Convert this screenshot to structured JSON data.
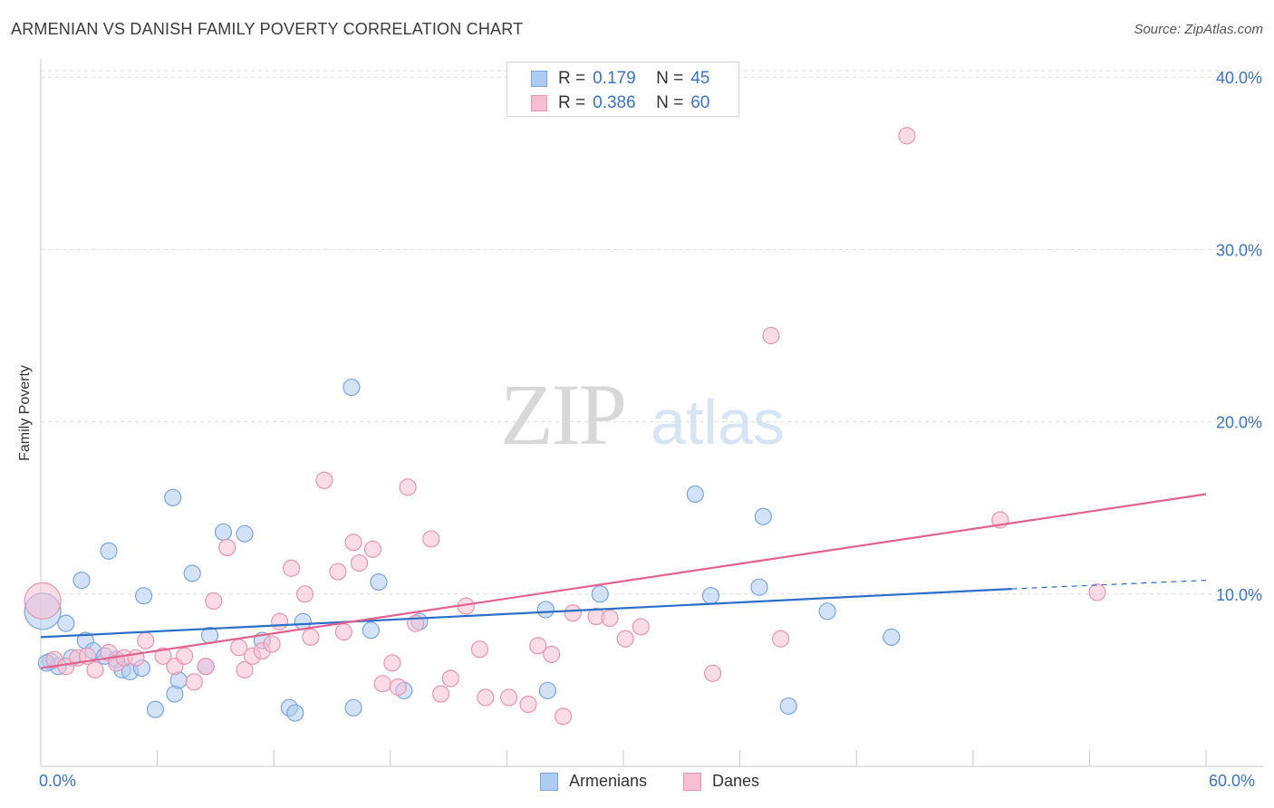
{
  "title": "ARMENIAN VS DANISH FAMILY POVERTY CORRELATION CHART",
  "source": "Source: ZipAtlas.com",
  "watermark": {
    "zip": "ZIP",
    "atlas": "atlas"
  },
  "legend": {
    "rows": [
      {
        "r_label": "R =",
        "r_value": "0.179",
        "n_label": "N =",
        "n_value": "45"
      },
      {
        "r_label": "R =",
        "r_value": "0.386",
        "n_label": "N =",
        "n_value": "60"
      }
    ]
  },
  "bottom_legend": {
    "armenians": "Armenians",
    "danes": "Danes"
  },
  "colors": {
    "armenians_fill": "#aecbf0",
    "armenians_stroke": "#7aa6dc",
    "armenians_line": "#2b6fc8",
    "danes_fill": "#f6c0d2",
    "danes_stroke": "#ea94b2",
    "danes_line": "#e2628f",
    "tick_text": "#3a74c4",
    "grid": "#dddddd"
  },
  "chart_data": {
    "type": "scatter",
    "title": "ARMENIAN VS DANISH FAMILY POVERTY CORRELATION CHART",
    "xlabel": "",
    "ylabel": "Family Poverty",
    "xlim": [
      0,
      60
    ],
    "ylim": [
      0,
      40.8
    ],
    "x_tick_labels": [
      "0.0%",
      "60.0%"
    ],
    "y_ticks": [
      10,
      20,
      30,
      40
    ],
    "y_tick_labels": [
      "10.0%",
      "20.0%",
      "30.0%",
      "40.0%"
    ],
    "grid": "horizontal dashed",
    "legend_position": "top-center",
    "series": [
      {
        "name": "Armenians",
        "R": 0.179,
        "N": 45,
        "trend": {
          "x0": 0,
          "y0": 7.5,
          "x1": 50,
          "y1": 10.3,
          "dashed_to_x": 60,
          "dashed_to_y": 10.8
        },
        "points": [
          [
            0.1,
            9.0
          ],
          [
            0.5,
            6.1
          ],
          [
            0.9,
            5.8
          ],
          [
            1.3,
            8.3
          ],
          [
            1.6,
            6.3
          ],
          [
            2.1,
            10.8
          ],
          [
            2.3,
            7.3
          ],
          [
            2.7,
            6.7
          ],
          [
            3.3,
            6.4
          ],
          [
            3.5,
            12.5
          ],
          [
            3.9,
            6.2
          ],
          [
            4.2,
            5.6
          ],
          [
            4.6,
            5.5
          ],
          [
            5.2,
            5.7
          ],
          [
            5.3,
            9.9
          ],
          [
            5.9,
            3.3
          ],
          [
            6.8,
            15.6
          ],
          [
            6.9,
            4.2
          ],
          [
            7.1,
            5.0
          ],
          [
            7.8,
            11.2
          ],
          [
            8.5,
            5.8
          ],
          [
            8.7,
            7.6
          ],
          [
            9.4,
            13.6
          ],
          [
            10.5,
            13.5
          ],
          [
            11.4,
            7.3
          ],
          [
            12.8,
            3.4
          ],
          [
            13.1,
            3.1
          ],
          [
            13.5,
            8.4
          ],
          [
            16.0,
            22.0
          ],
          [
            16.1,
            3.4
          ],
          [
            17.0,
            7.9
          ],
          [
            17.4,
            10.7
          ],
          [
            18.7,
            4.4
          ],
          [
            19.5,
            8.4
          ],
          [
            26.0,
            9.1
          ],
          [
            26.1,
            4.4
          ],
          [
            28.8,
            10.0
          ],
          [
            33.7,
            15.8
          ],
          [
            34.5,
            9.9
          ],
          [
            37.0,
            10.4
          ],
          [
            37.2,
            14.5
          ],
          [
            38.5,
            3.5
          ],
          [
            40.5,
            9.0
          ],
          [
            43.8,
            7.5
          ],
          [
            0.3,
            6.0
          ]
        ]
      },
      {
        "name": "Danes",
        "R": 0.386,
        "N": 60,
        "trend": {
          "x0": 0,
          "y0": 5.7,
          "x1": 60,
          "y1": 15.8
        },
        "points": [
          [
            0.1,
            9.6
          ],
          [
            0.7,
            6.2
          ],
          [
            1.3,
            5.8
          ],
          [
            1.9,
            6.3
          ],
          [
            2.4,
            6.4
          ],
          [
            2.8,
            5.6
          ],
          [
            3.5,
            6.6
          ],
          [
            3.9,
            6.0
          ],
          [
            4.3,
            6.3
          ],
          [
            4.9,
            6.3
          ],
          [
            5.4,
            7.3
          ],
          [
            6.3,
            6.4
          ],
          [
            6.9,
            5.8
          ],
          [
            7.4,
            6.4
          ],
          [
            7.9,
            4.9
          ],
          [
            8.5,
            5.8
          ],
          [
            8.9,
            9.6
          ],
          [
            9.6,
            12.7
          ],
          [
            10.2,
            6.9
          ],
          [
            10.5,
            5.6
          ],
          [
            10.9,
            6.4
          ],
          [
            11.4,
            6.7
          ],
          [
            11.9,
            7.1
          ],
          [
            12.3,
            8.4
          ],
          [
            12.9,
            11.5
          ],
          [
            13.6,
            10.0
          ],
          [
            13.9,
            7.5
          ],
          [
            14.6,
            16.6
          ],
          [
            15.3,
            11.3
          ],
          [
            15.6,
            7.8
          ],
          [
            16.1,
            13.0
          ],
          [
            16.4,
            11.8
          ],
          [
            17.1,
            12.6
          ],
          [
            17.6,
            4.8
          ],
          [
            18.1,
            6.0
          ],
          [
            18.4,
            4.6
          ],
          [
            18.9,
            16.2
          ],
          [
            19.3,
            8.3
          ],
          [
            20.1,
            13.2
          ],
          [
            20.6,
            4.2
          ],
          [
            21.1,
            5.1
          ],
          [
            21.9,
            9.3
          ],
          [
            22.6,
            6.8
          ],
          [
            22.9,
            4.0
          ],
          [
            24.1,
            4.0
          ],
          [
            25.1,
            3.6
          ],
          [
            25.6,
            7.0
          ],
          [
            26.3,
            6.5
          ],
          [
            26.9,
            2.9
          ],
          [
            27.4,
            8.9
          ],
          [
            28.6,
            8.7
          ],
          [
            29.3,
            8.6
          ],
          [
            30.1,
            7.4
          ],
          [
            30.9,
            8.1
          ],
          [
            34.6,
            5.4
          ],
          [
            37.6,
            25.0
          ],
          [
            38.1,
            7.4
          ],
          [
            44.6,
            36.6
          ],
          [
            49.4,
            14.3
          ],
          [
            54.4,
            10.1
          ]
        ]
      }
    ]
  }
}
